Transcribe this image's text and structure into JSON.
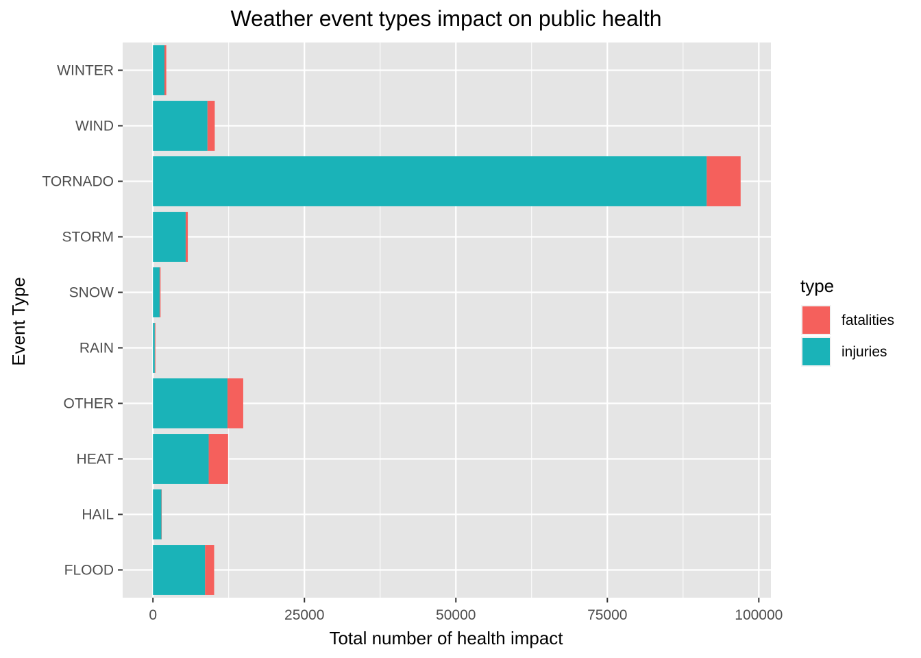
{
  "chart_data": {
    "type": "bar",
    "orientation": "horizontal",
    "stacked": true,
    "title": "Weather event types impact on public health",
    "xlabel": "Total number of health impact",
    "ylabel": "Event Type",
    "xlim": [
      -5000,
      102000
    ],
    "x_ticks": [
      0,
      25000,
      50000,
      75000,
      100000
    ],
    "x_tick_labels": [
      "0",
      "25000",
      "50000",
      "75000",
      "100000"
    ],
    "categories": [
      "FLOOD",
      "HAIL",
      "HEAT",
      "OTHER",
      "RAIN",
      "SNOW",
      "STORM",
      "TORNADO",
      "WIND",
      "WINTER"
    ],
    "series": [
      {
        "name": "injuries",
        "color": "#1ab3b8",
        "values": [
          8600,
          1400,
          9200,
          12300,
          300,
          1100,
          5400,
          91400,
          9000,
          1900
        ]
      },
      {
        "name": "fatalities",
        "color": "#f5605c",
        "values": [
          1500,
          50,
          3200,
          2600,
          100,
          150,
          350,
          5600,
          1200,
          300
        ]
      }
    ],
    "legend": {
      "title": "type",
      "position": "right",
      "entries": [
        {
          "label": "fatalities",
          "color": "#f5605c"
        },
        {
          "label": "injuries",
          "color": "#1ab3b8"
        }
      ]
    },
    "grid": true,
    "panel_background": "#e5e5e5",
    "grid_color": "#ffffff"
  }
}
